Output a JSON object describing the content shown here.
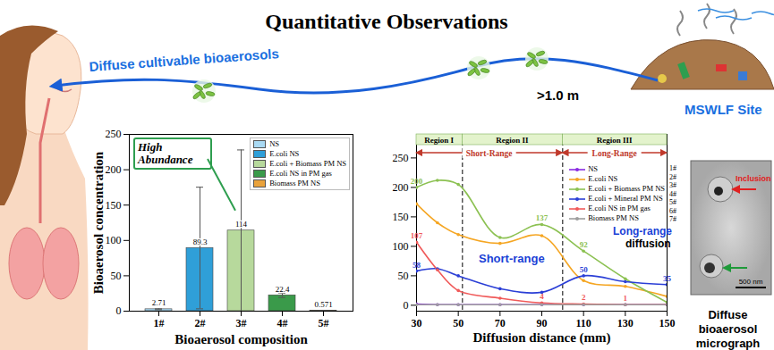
{
  "page": {
    "title": "Quantitative Observations",
    "arrow_label": "Diffuse cultivable bioaerosols",
    "source": "MSWLF Site",
    "distance": ">1.0 m",
    "micrograph": {
      "caption": "Diffuse bioaerosol micrograph",
      "inclusion": "Inclusion",
      "scale_bar": "500 nm",
      "note_highlight": "Long-range",
      "note_rest": "diffusion"
    }
  },
  "chart_data": [
    {
      "type": "bar",
      "x_label": "Bioaerosol composition",
      "y_label": "Bioaerosol concentration",
      "categories": [
        "1#",
        "2#",
        "3#",
        "4#",
        "5#"
      ],
      "values": [
        2.71,
        89.3,
        114,
        22.4,
        0.571
      ],
      "errors": [
        0.6,
        86,
        114,
        3,
        0.2
      ],
      "colors": [
        "#a9d9f2",
        "#2f9fd8",
        "#b7d99c",
        "#3a9a4a",
        "#e9a23b"
      ],
      "legend_entries": [
        "NS",
        "E.coli NS",
        "E.coli + Biomass PM NS",
        "E.coli NS in PM gas",
        "Biomass PM NS"
      ],
      "legend": "top-right",
      "ylim": [
        0,
        250
      ],
      "yticks": [
        0,
        50,
        100,
        150,
        200,
        250
      ],
      "data_labels": true,
      "annotations": [
        "High Abundance"
      ]
    },
    {
      "type": "line",
      "x_label": "Diffusion distance (mm)",
      "xlim": [
        30,
        150
      ],
      "xticks": [
        30,
        50,
        70,
        90,
        110,
        130,
        150
      ],
      "ylim": [
        -10,
        290
      ],
      "yticks": [
        0,
        50,
        100,
        150,
        200,
        250
      ],
      "x": [
        30,
        40,
        50,
        70,
        90,
        110,
        130,
        150
      ],
      "series": [
        {
          "name": "NS",
          "color": "#8a2be2",
          "values": [
            2,
            1,
            1,
            1,
            1,
            1,
            1,
            1
          ],
          "value_labels": [
            null,
            null,
            null,
            null,
            null,
            null,
            null,
            null
          ]
        },
        {
          "name": "E.coli NS",
          "color": "#f5a623",
          "values": [
            172,
            140,
            120,
            105,
            118,
            42,
            32,
            15
          ],
          "value_labels": [
            null,
            null,
            null,
            null,
            null,
            null,
            null,
            null
          ]
        },
        {
          "name": "E.coli + Biomass PM NS",
          "color": "#8cc152",
          "values": [
            200,
            212,
            205,
            115,
            137,
            92,
            45,
            5
          ],
          "value_labels": [
            "200",
            null,
            null,
            null,
            "137",
            "92",
            null,
            null
          ]
        },
        {
          "name": "E.coli + Mineral PM NS",
          "color": "#2b3fd6",
          "values": [
            58,
            62,
            50,
            28,
            22,
            50,
            40,
            35
          ],
          "value_labels": [
            "58",
            null,
            null,
            null,
            null,
            "50",
            null,
            "35"
          ]
        },
        {
          "name": "E.coli NS in PM gas",
          "color": "#f05a5a",
          "values": [
            107,
            60,
            25,
            12,
            4,
            2,
            1,
            1
          ],
          "value_labels": [
            "107",
            null,
            null,
            null,
            "4",
            "2",
            "1",
            null
          ]
        },
        {
          "name": "Biomass PM NS",
          "color": "#9e9e9e",
          "values": [
            1,
            1,
            1,
            1,
            1,
            1,
            1,
            1
          ],
          "value_labels": [
            null,
            null,
            null,
            null,
            null,
            null,
            null,
            null
          ]
        }
      ],
      "series_numbers": [
        "1#",
        "2#",
        "3#",
        "4#",
        "5#",
        "6#",
        "7#"
      ],
      "legend": "top-right",
      "regions": [
        {
          "name": "Region I",
          "start": 30,
          "end": 52
        },
        {
          "name": "Region II",
          "start": 52,
          "end": 100
        },
        {
          "name": "Region III",
          "start": 100,
          "end": 150
        }
      ],
      "ranges": [
        {
          "label": "Short-Range",
          "start": 30,
          "end": 100
        },
        {
          "label": "Long-Range",
          "start": 100,
          "end": 150
        }
      ],
      "annotations": [
        "Short-range"
      ]
    }
  ]
}
